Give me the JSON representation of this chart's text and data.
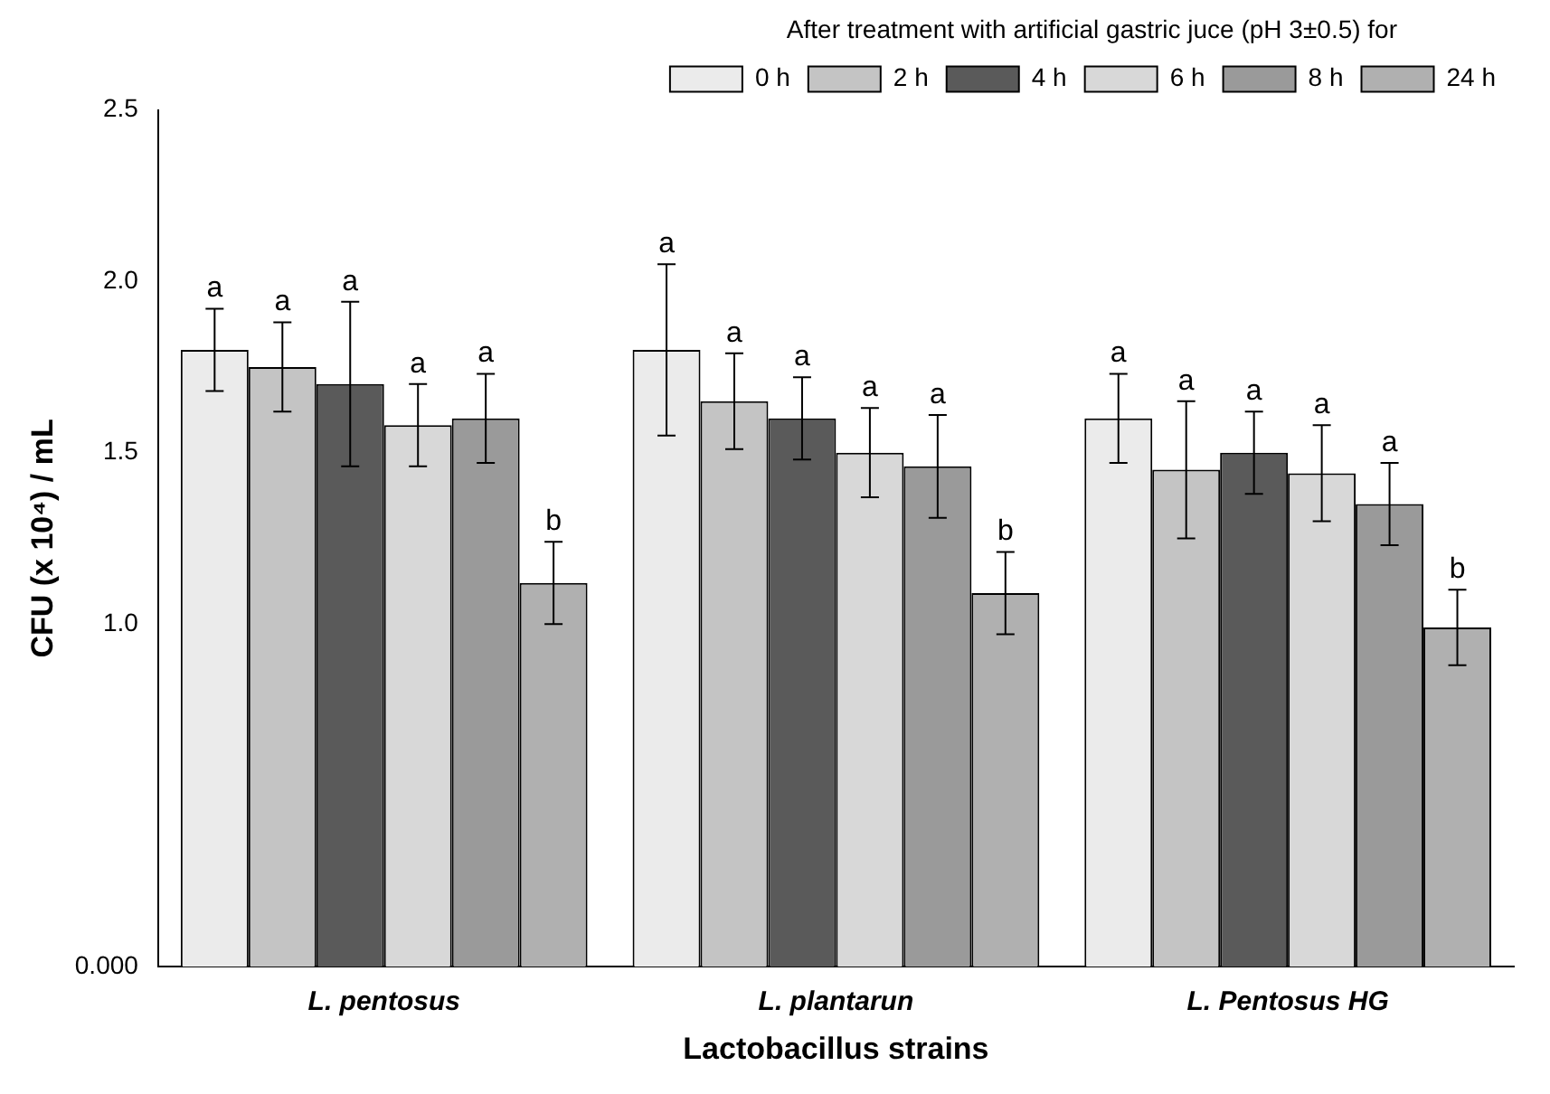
{
  "chart_data": {
    "type": "bar",
    "xlabel": "Lactobacillus strains",
    "ylabel": "CFU (x 10⁴) / mL",
    "legend_title": "After treatment with artificial gastric juce (pH 3±0.5) for",
    "legend": "top right",
    "categories": [
      "L. pentosus",
      "L. plantarun",
      "L. Pentosus HG"
    ],
    "ylim": [
      0,
      2.5
    ],
    "yticks": [
      {
        "value": 0,
        "label": "0.000"
      },
      {
        "value": 1,
        "label": "1.0"
      },
      {
        "value": 1.5,
        "label": "1.5"
      },
      {
        "value": 2,
        "label": "2.0"
      },
      {
        "value": 2.5,
        "label": "2.5"
      }
    ],
    "series": [
      {
        "name": "0 h",
        "color": "#ebebeb",
        "values": [
          1.8,
          1.8,
          1.6
        ],
        "errors": [
          0.12,
          0.25,
          0.13
        ],
        "value_labels": [
          "a",
          "a",
          "a"
        ]
      },
      {
        "name": "2 h",
        "color": "#c4c4c4",
        "values": [
          1.75,
          1.65,
          1.45
        ],
        "errors": [
          0.13,
          0.14,
          0.2
        ],
        "value_labels": [
          "a",
          "a",
          "a"
        ]
      },
      {
        "name": "4 h",
        "color": "#5a5a5a",
        "values": [
          1.7,
          1.6,
          1.5
        ],
        "errors": [
          0.24,
          0.12,
          0.12
        ],
        "value_labels": [
          "a",
          "a",
          "a"
        ]
      },
      {
        "name": "6 h",
        "color": "#d8d8d8",
        "values": [
          1.58,
          1.5,
          1.44
        ],
        "errors": [
          0.12,
          0.13,
          0.14
        ],
        "value_labels": [
          "a",
          "a",
          "a"
        ]
      },
      {
        "name": "8 h",
        "color": "#9a9a9a",
        "values": [
          1.6,
          1.46,
          1.35
        ],
        "errors": [
          0.13,
          0.15,
          0.12
        ],
        "value_labels": [
          "a",
          "a",
          "a"
        ]
      },
      {
        "name": "24 h",
        "color": "#b0b0b0",
        "values": [
          1.12,
          1.09,
          0.99
        ],
        "errors": [
          0.12,
          0.12,
          0.11
        ],
        "value_labels": [
          "b",
          "b",
          "b"
        ]
      }
    ]
  }
}
